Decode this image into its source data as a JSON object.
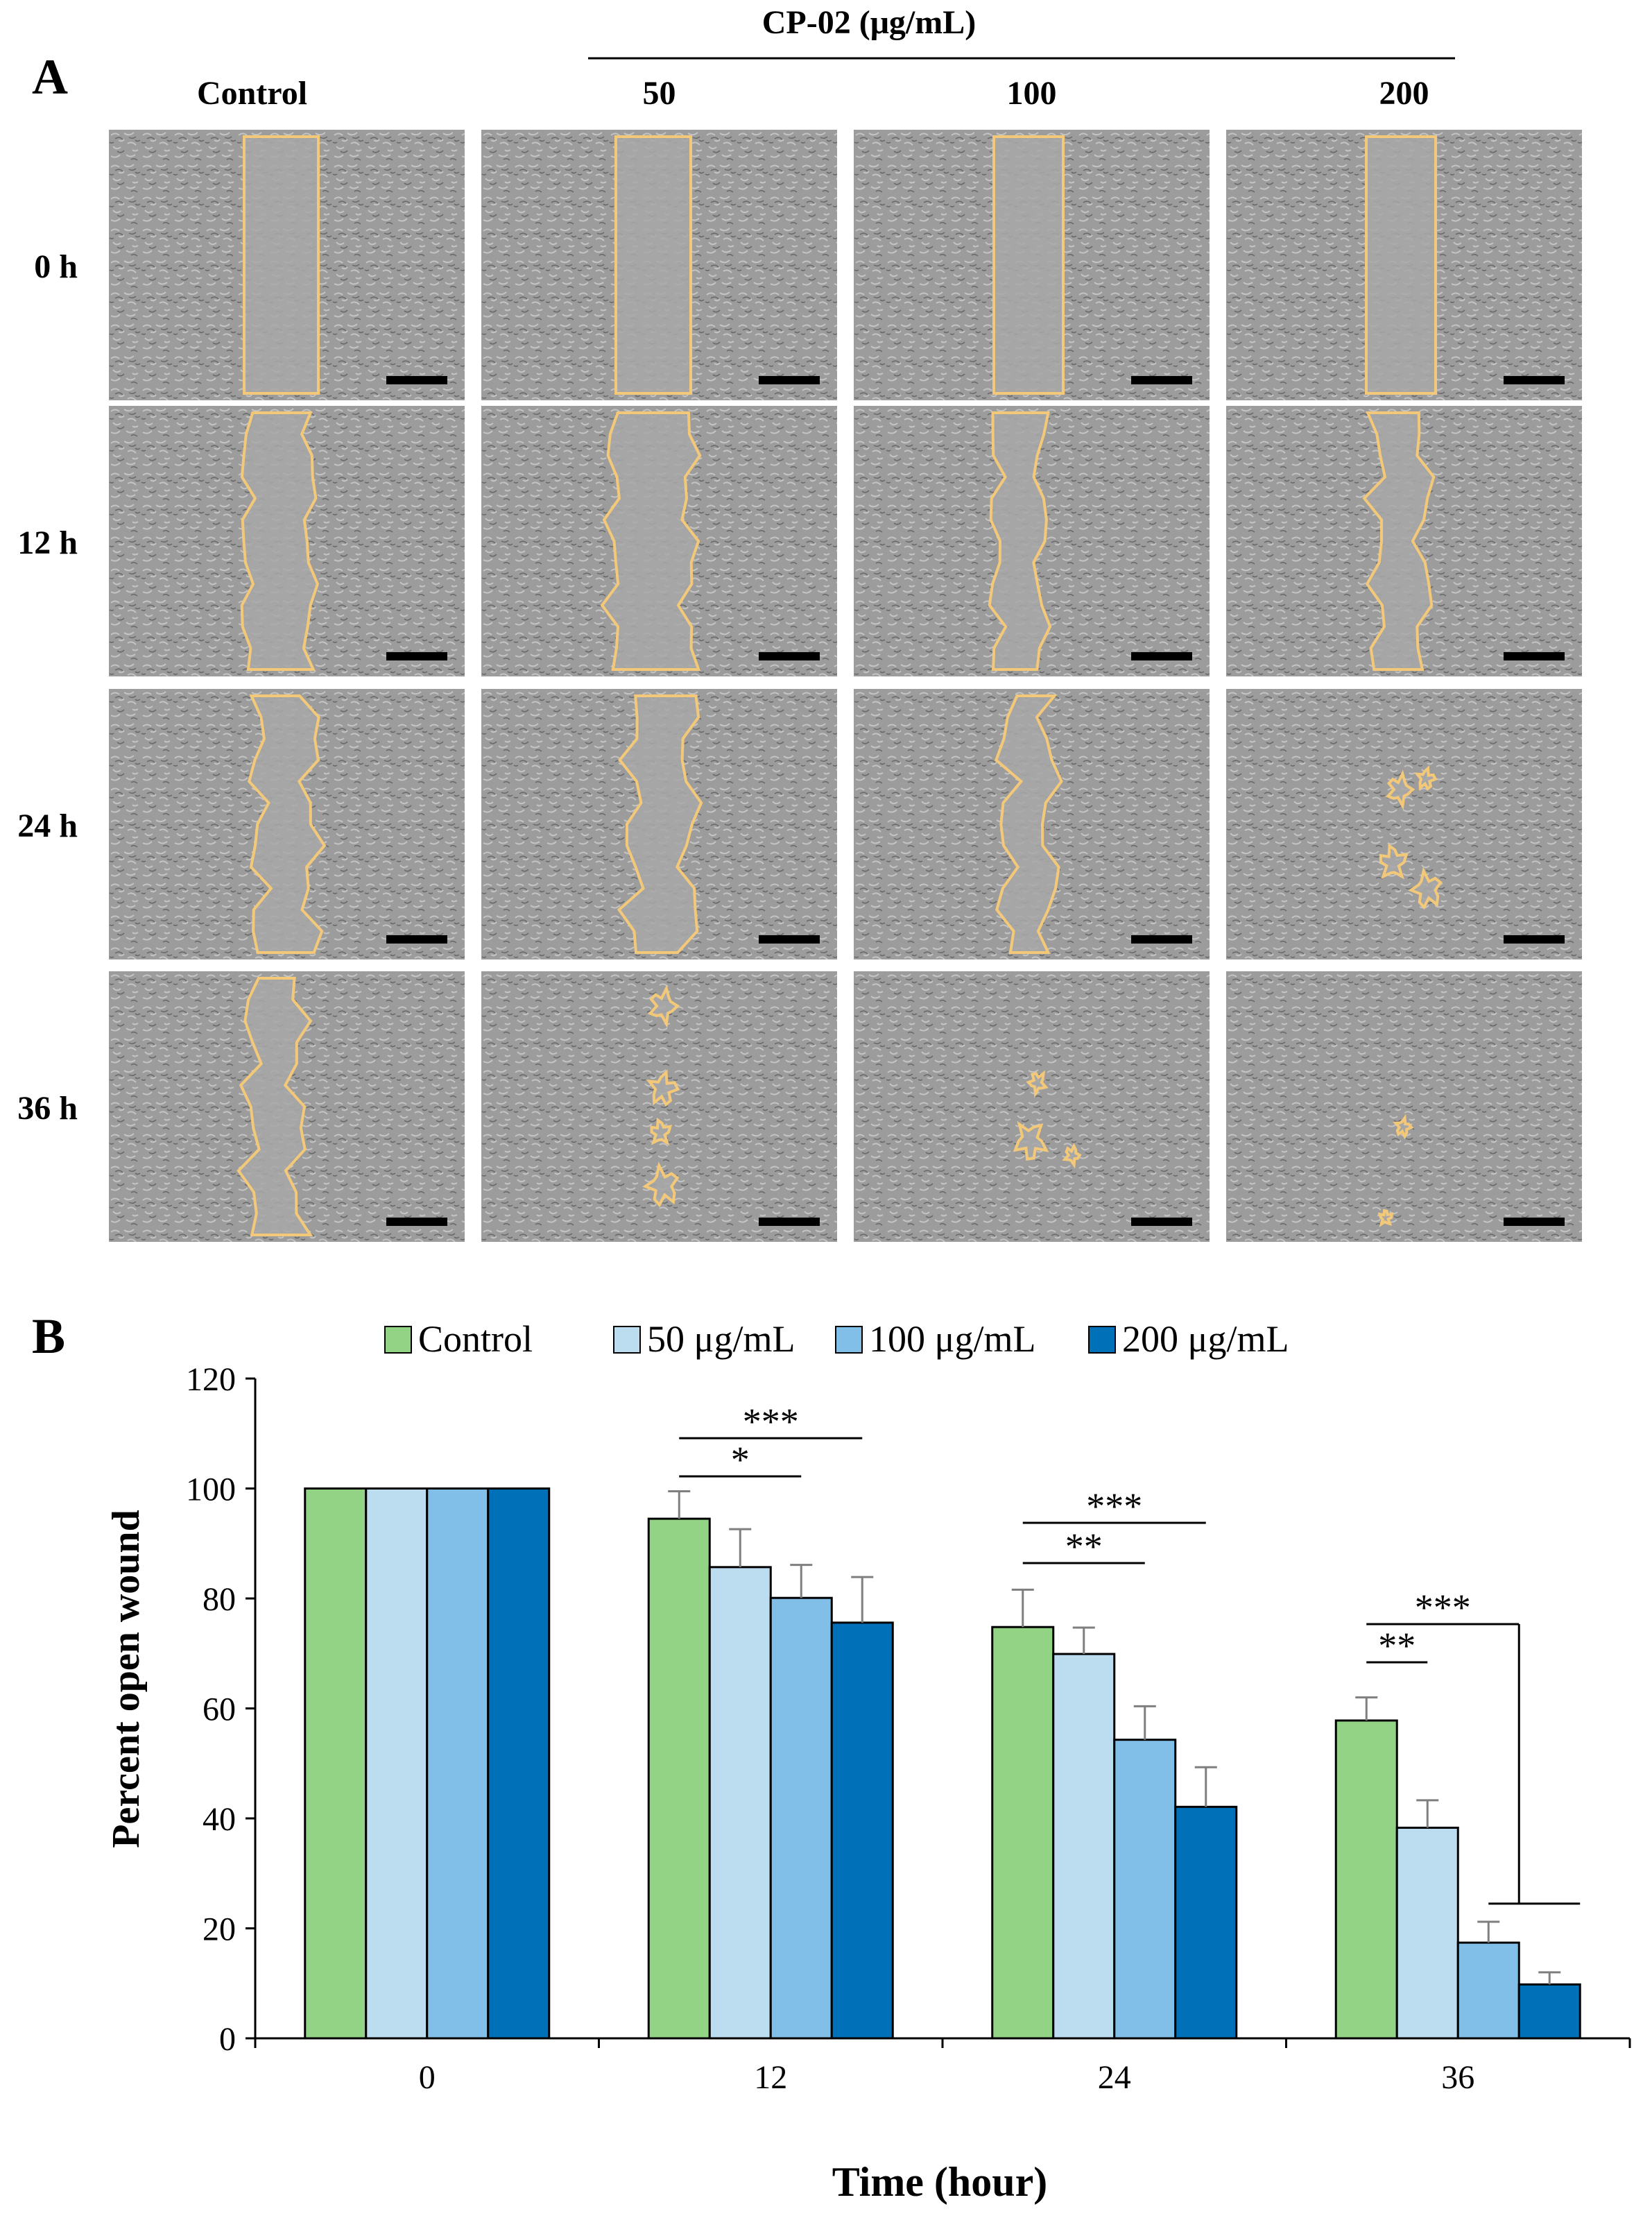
{
  "panel_a": {
    "label": "A",
    "group_header": "CP-02 (μg/mL)",
    "columns": [
      "Control",
      "50",
      "100",
      "200"
    ],
    "rows": [
      "0 h",
      "12 h",
      "24 h",
      "36 h"
    ],
    "colors": {
      "micrograph_bg": "#9a9a9a",
      "wound_outline": "#f3c979",
      "scale_bar": "#000000"
    }
  },
  "panel_b": {
    "label": "B"
  },
  "chart_data": {
    "type": "bar",
    "title": "",
    "xlabel": "Time (hour)",
    "ylabel": "Percent open wound",
    "categories": [
      "0",
      "12",
      "24",
      "36"
    ],
    "ylim": [
      0,
      120
    ],
    "yticks": [
      0,
      20,
      40,
      60,
      80,
      100,
      120
    ],
    "grid": false,
    "legend": "top",
    "series": [
      {
        "name": "Control",
        "color": "#92d386",
        "values": [
          100,
          94.5,
          74.8,
          57.8
        ],
        "errors": [
          0,
          5.0,
          6.8,
          4.2
        ]
      },
      {
        "name": "50 μg/mL",
        "color": "#bcdcf0",
        "values": [
          100,
          85.7,
          69.9,
          38.3
        ],
        "errors": [
          0,
          6.9,
          4.8,
          5.0
        ]
      },
      {
        "name": "100 μg/mL",
        "color": "#82bfe8",
        "values": [
          100,
          80.1,
          54.3,
          17.4
        ],
        "errors": [
          0,
          6.0,
          6.1,
          3.8
        ]
      },
      {
        "name": "200 μg/mL",
        "color": "#0070b8",
        "values": [
          100,
          75.6,
          42.1,
          9.8
        ],
        "errors": [
          0,
          8.3,
          7.2,
          2.2
        ]
      }
    ],
    "significance": [
      {
        "group": "12",
        "from": "Control",
        "to": "100 μg/mL",
        "label": "*"
      },
      {
        "group": "12",
        "from": "Control",
        "to": "200 μg/mL",
        "label": "***"
      },
      {
        "group": "24",
        "from": "Control",
        "to": "100 μg/mL",
        "label": "**"
      },
      {
        "group": "24",
        "from": "Control",
        "to": "200 μg/mL",
        "label": "***"
      },
      {
        "group": "36",
        "from": "Control",
        "to": "50 μg/mL",
        "label": "**"
      },
      {
        "group": "36",
        "from": "Control",
        "to": "100 μg/mL / 200 μg/mL",
        "label": "***"
      }
    ]
  }
}
